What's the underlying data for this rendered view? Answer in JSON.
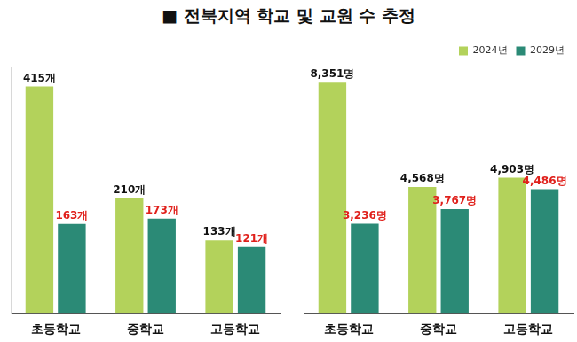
{
  "title": "■ 전북지역 학교 및 교원 수 추정",
  "chart_data": [
    {
      "type": "bar",
      "categories": [
        "초등학교",
        "중학교",
        "고등학교"
      ],
      "series": [
        {
          "name": "2024년",
          "color": "#b3d25b",
          "values": [
            415,
            210,
            133
          ],
          "value_labels": [
            "415개",
            "210개",
            "133개"
          ]
        },
        {
          "name": "2029년",
          "color": "#2b8a76",
          "values": [
            163,
            173,
            121
          ],
          "value_labels": [
            "163개",
            "173개",
            "121개"
          ]
        }
      ],
      "ylim": [
        0,
        450
      ],
      "grid": false,
      "tick_labels": "x",
      "data_labels": true
    },
    {
      "type": "bar",
      "categories": [
        "초등학교",
        "중학교",
        "고등학교"
      ],
      "series": [
        {
          "name": "2024년",
          "color": "#b3d25b",
          "values": [
            8351,
            4568,
            4903
          ],
          "value_labels": [
            "8,351명",
            "4,568명",
            "4,903명"
          ]
        },
        {
          "name": "2029년",
          "color": "#2b8a76",
          "values": [
            3236,
            3767,
            4486
          ],
          "value_labels": [
            "3,236명",
            "3,767명",
            "4,486명"
          ]
        }
      ],
      "ylim": [
        0,
        9000
      ],
      "grid": false,
      "tick_labels": "x",
      "data_labels": true,
      "legend": "top-right"
    }
  ]
}
